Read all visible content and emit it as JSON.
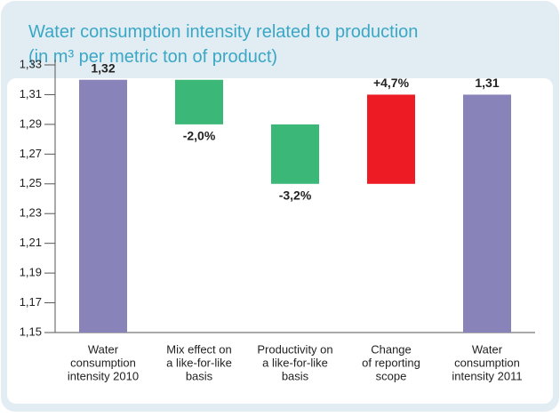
{
  "chart_data": {
    "type": "waterfall",
    "title": [
      "Water consumption intensity related to production",
      "(in m³ per metric ton of product)"
    ],
    "categories": [
      [
        "Water",
        "consumption",
        "intensity 2010"
      ],
      [
        "Mix effect on",
        "a like-for-like",
        "basis"
      ],
      [
        "Productivity on",
        "a like-for-like",
        "basis"
      ],
      [
        "Change",
        "of reporting",
        "scope"
      ],
      [
        "Water",
        "consumption",
        "intensity 2011"
      ]
    ],
    "kinds": [
      "total",
      "delta",
      "delta",
      "delta",
      "total"
    ],
    "values": [
      1.32,
      -0.03,
      -0.04,
      0.06,
      1.31
    ],
    "value_labels": [
      "1,32",
      "-2,0%",
      "-3,2%",
      "+4,7%",
      "1,31"
    ],
    "colors": {
      "total": "#8883b8",
      "decrease": "#3bb878",
      "increase": "#ed1c24"
    },
    "ylim": [
      1.15,
      1.33
    ],
    "yticks": [
      {
        "value": 1.15,
        "label": "1,15"
      },
      {
        "value": 1.17,
        "label": "1,17"
      },
      {
        "value": 1.19,
        "label": "1,19"
      },
      {
        "value": 1.21,
        "label": "1,21"
      },
      {
        "value": 1.23,
        "label": "1,23"
      },
      {
        "value": 1.25,
        "label": "1,25"
      },
      {
        "value": 1.27,
        "label": "1,27"
      },
      {
        "value": 1.29,
        "label": "1,29"
      },
      {
        "value": 1.31,
        "label": "1,31"
      },
      {
        "value": 1.33,
        "label": "1,33"
      }
    ]
  }
}
